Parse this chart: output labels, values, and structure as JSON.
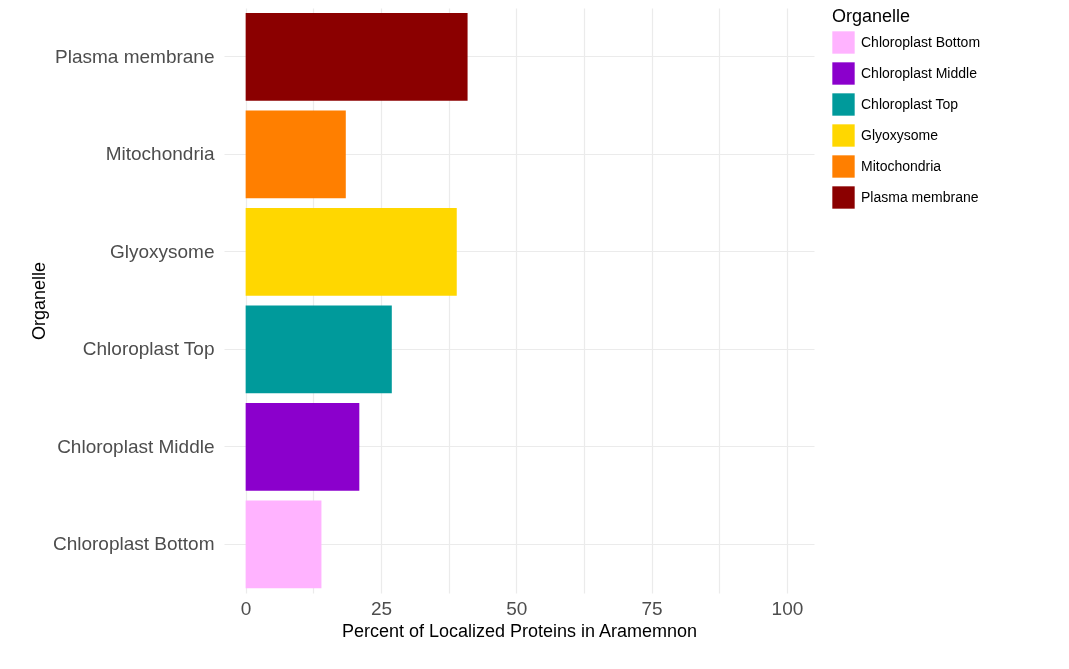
{
  "chart_data": {
    "type": "bar",
    "orientation": "horizontal",
    "xlabel": "Percent of Localized Proteins in Aramemnon",
    "ylabel": "Organelle",
    "legend_title": "Organelle",
    "categories": [
      "Plasma membrane",
      "Mitochondria",
      "Glyoxysome",
      "Chloroplast Top",
      "Chloroplast Middle",
      "Chloroplast Bottom"
    ],
    "series": [
      {
        "name": "Chloroplast Bottom",
        "color": "#ffb3ff",
        "values": [
          null,
          null,
          null,
          null,
          null,
          14
        ]
      },
      {
        "name": "Chloroplast Middle",
        "color": "#8b00cc",
        "values": [
          null,
          null,
          null,
          null,
          21,
          null
        ]
      },
      {
        "name": "Chloroplast Top",
        "color": "#009a9b",
        "values": [
          null,
          null,
          null,
          27,
          null,
          null
        ]
      },
      {
        "name": "Glyoxysome",
        "color": "#ffd700",
        "values": [
          null,
          null,
          39,
          null,
          null,
          null
        ]
      },
      {
        "name": "Mitochondria",
        "color": "#ff7f00",
        "values": [
          null,
          18.5,
          null,
          null,
          null,
          null
        ]
      },
      {
        "name": "Plasma membrane",
        "color": "#8b0000",
        "values": [
          41,
          null,
          null,
          null,
          null,
          null
        ]
      }
    ],
    "xlim": [
      -4,
      105
    ],
    "xticks": [
      0,
      {
        "value": 12.5,
        "label": null
      },
      25,
      {
        "value": 37.5,
        "label": null
      },
      50,
      {
        "value": 62.5,
        "label": null
      },
      75,
      {
        "value": 87.5,
        "label": null
      },
      100
    ],
    "grid": true,
    "legend": "right"
  }
}
